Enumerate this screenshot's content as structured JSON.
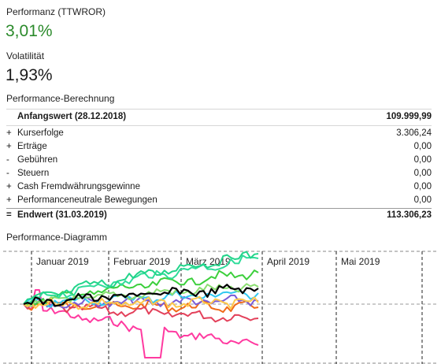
{
  "performance": {
    "label": "Performanz (TTWROR)",
    "value": "3,01%"
  },
  "volatility": {
    "label": "Volatilität",
    "value": "1,93%"
  },
  "calc": {
    "title": "Performance-Berechnung",
    "start": {
      "label": "Anfangswert (28.12.2018)",
      "value": "109.999,99"
    },
    "rows": [
      {
        "sign": "+",
        "label": "Kurserfolge",
        "value": "3.306,24"
      },
      {
        "sign": "+",
        "label": "Erträge",
        "value": "0,00"
      },
      {
        "sign": "-",
        "label": "Gebühren",
        "value": "0,00"
      },
      {
        "sign": "-",
        "label": "Steuern",
        "value": "0,00"
      },
      {
        "sign": "+",
        "label": "Cash Fremdwährungsgewinne",
        "value": "0,00"
      },
      {
        "sign": "+",
        "label": "Performanceneutrale Bewegungen",
        "value": "0,00"
      }
    ],
    "end": {
      "sign": "=",
      "label": "Endwert (31.03.2019)",
      "value": "113.306,23"
    }
  },
  "diagram": {
    "title": "Performance-Diagramm",
    "months": [
      "Januar 2019",
      "Februar 2019",
      "März 2019",
      "April 2019",
      "Mai 2019"
    ]
  },
  "chart_data": {
    "type": "line",
    "x_start": "2018-12-28",
    "x_end": "2019-05-31",
    "series_colors": [
      "#ff3aa0",
      "#f06a1a",
      "#e3405a",
      "#7a5cd6",
      "#30c8f0",
      "#3ccf3c",
      "#8ade70",
      "#ffc84a",
      "#2fdc9a",
      "#22d48a",
      "#000000"
    ]
  }
}
